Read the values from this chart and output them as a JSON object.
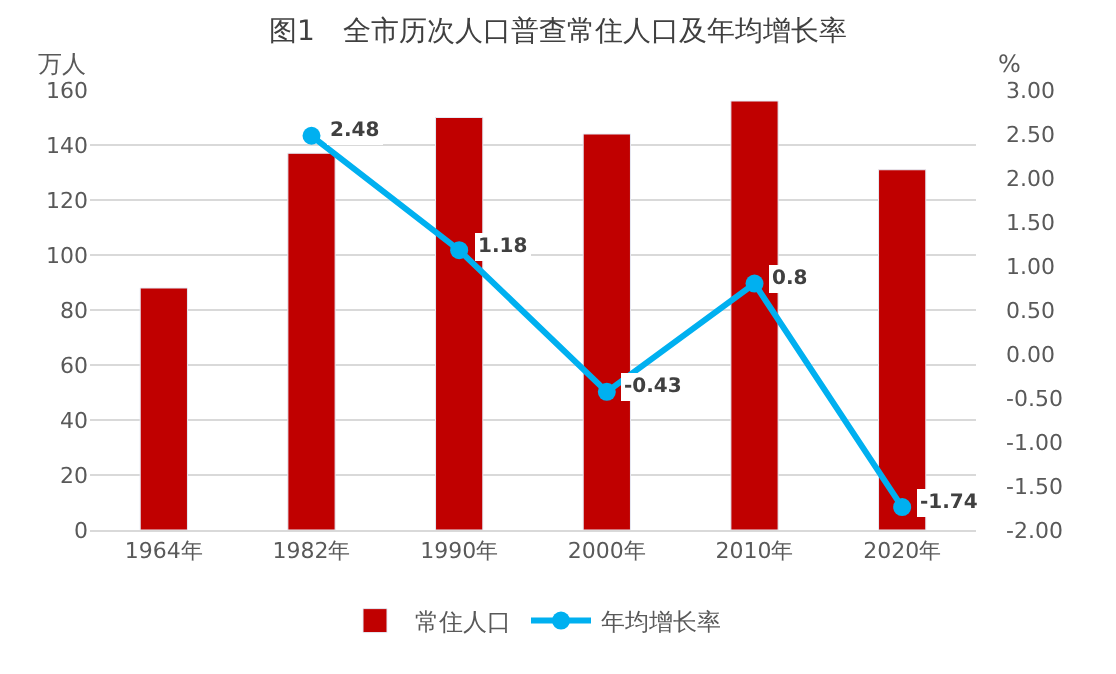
{
  "chart_data": {
    "type": "bar",
    "title": "图1　全市历次人口普查常住人口及年均增长率",
    "ylabel": "万人",
    "y2label": "%",
    "categories": [
      "1964年",
      "1982年",
      "1990年",
      "2000年",
      "2010年",
      "2020年"
    ],
    "series": [
      {
        "name": "常住人口",
        "color": "#c00000",
        "values": [
          88,
          137,
          150,
          144,
          156,
          131
        ]
      },
      {
        "name": "年均增长率",
        "type": "line",
        "axis": "y2",
        "color": "#00b0f0",
        "marker": "circle",
        "values": [
          null,
          2.48,
          1.18,
          -0.43,
          0.8,
          -1.74
        ],
        "value_labels": [
          null,
          "2.48",
          "1.18",
          "-0.43",
          "0.8",
          "-1.74"
        ]
      }
    ],
    "ylim": [
      0,
      160
    ],
    "yticks": [
      0,
      20,
      40,
      60,
      80,
      100,
      120,
      140,
      160
    ],
    "y2lim": [
      -2,
      3
    ],
    "y2ticks": [
      {
        "value": -2,
        "label": "-2.00"
      },
      {
        "value": -1.5,
        "label": "-1.50"
      },
      {
        "value": -1,
        "label": "-1.00"
      },
      {
        "value": -0.5,
        "label": "-0.50"
      },
      {
        "value": 0,
        "label": "0.00"
      },
      {
        "value": 0.5,
        "label": "0.50"
      },
      {
        "value": 1,
        "label": "1.00"
      },
      {
        "value": 1.5,
        "label": "1.50"
      },
      {
        "value": 2,
        "label": "2.00"
      },
      {
        "value": 2.5,
        "label": "2.50"
      },
      {
        "value": 3,
        "label": "3.00"
      }
    ],
    "grid": "y",
    "legend": "bottom"
  }
}
